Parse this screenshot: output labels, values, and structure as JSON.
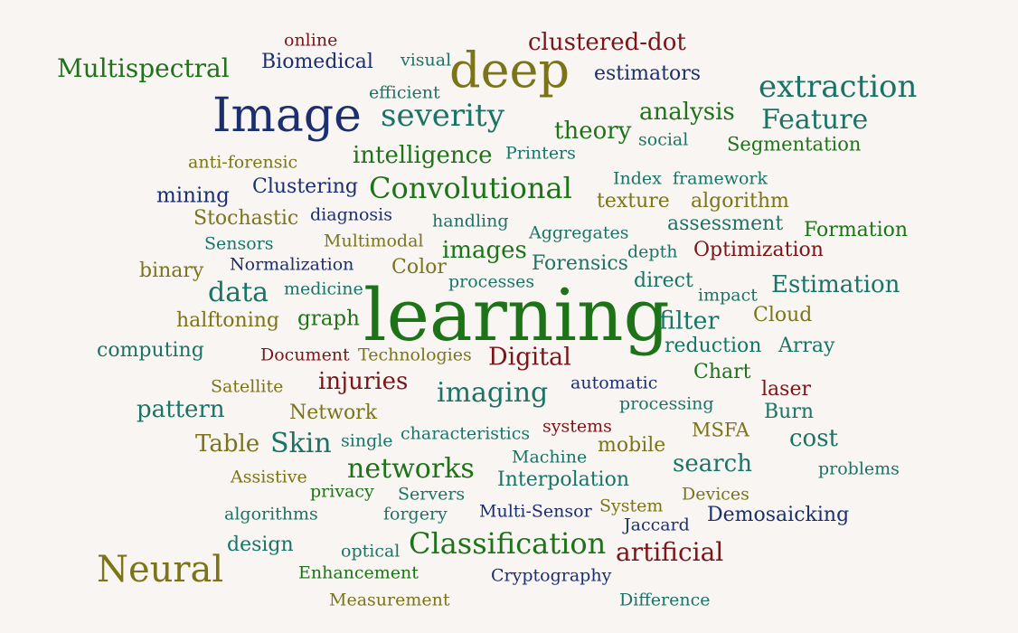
{
  "colors": {
    "background": "#f9f5f3",
    "green": "#1e7319",
    "teal": "#1a7466",
    "navy": "#1b2f6e",
    "olive": "#7b7418",
    "maroon": "#7a1519"
  },
  "words": {
    "w001": "learning",
    "w002": "Image",
    "w003": "deep",
    "w004": "Neural",
    "w005": "extraction",
    "w006": "severity",
    "w007": "Convolutional",
    "w008": "Classification",
    "w009": "Feature",
    "w010": "Multispectral",
    "w011": "networks",
    "w012": "imaging",
    "w013": "clustered-dot",
    "w014": "analysis",
    "w015": "theory",
    "w016": "intelligence",
    "w017": "artificial",
    "w018": "data",
    "w019": "Skin",
    "w020": "images",
    "w021": "Estimation",
    "w022": "search",
    "w023": "Digital",
    "w024": "filter",
    "w025": "injuries",
    "w026": "pattern",
    "w027": "Table",
    "w028": "cost",
    "w029": "Segmentation",
    "w030": "Demosaicking",
    "w031": "Optimization",
    "w032": "Interpolation",
    "w033": "Formation",
    "w034": "algorithm",
    "w035": "assessment",
    "w036": "texture",
    "w037": "Clustering",
    "w038": "Stochastic",
    "w039": "halftoning",
    "w040": "Biomedical",
    "w041": "estimators",
    "w042": "reduction",
    "w043": "Forensics",
    "w044": "mining",
    "w045": "graph",
    "w046": "direct",
    "w047": "Network",
    "w048": "computing",
    "w049": "Cloud",
    "w050": "Array",
    "w051": "Chart",
    "w052": "laser",
    "w053": "Burn",
    "w054": "binary",
    "w055": "mobile",
    "w056": "MSFA",
    "w057": "design",
    "w058": "Color",
    "w059": "Multi-Sensor",
    "w060": "Normalization",
    "w061": "framework",
    "w062": "Index",
    "w063": "processing",
    "w064": "characteristics",
    "w065": "automatic",
    "w066": "Cryptography",
    "w067": "Enhancement",
    "w068": "Multimodal",
    "w069": "diagnosis",
    "w070": "medicine",
    "w071": "handling",
    "w072": "Aggregates",
    "w073": "processes",
    "w074": "depth",
    "w075": "impact",
    "w076": "Document",
    "w077": "Technologies",
    "w078": "efficient",
    "w079": "visual",
    "w080": "online",
    "w081": "Printers",
    "w082": "social",
    "w083": "anti-forensic",
    "w084": "Sensors",
    "w085": "Satellite",
    "w086": "single",
    "w087": "Machine",
    "w088": "systems",
    "w089": "Assistive",
    "w090": "privacy",
    "w091": "Servers",
    "w092": "algorithms",
    "w093": "forgery",
    "w094": "System",
    "w095": "Jaccard",
    "w096": "Devices",
    "w097": "problems",
    "w098": "optical",
    "w099": "Measurement",
    "w100": "Difference"
  }
}
